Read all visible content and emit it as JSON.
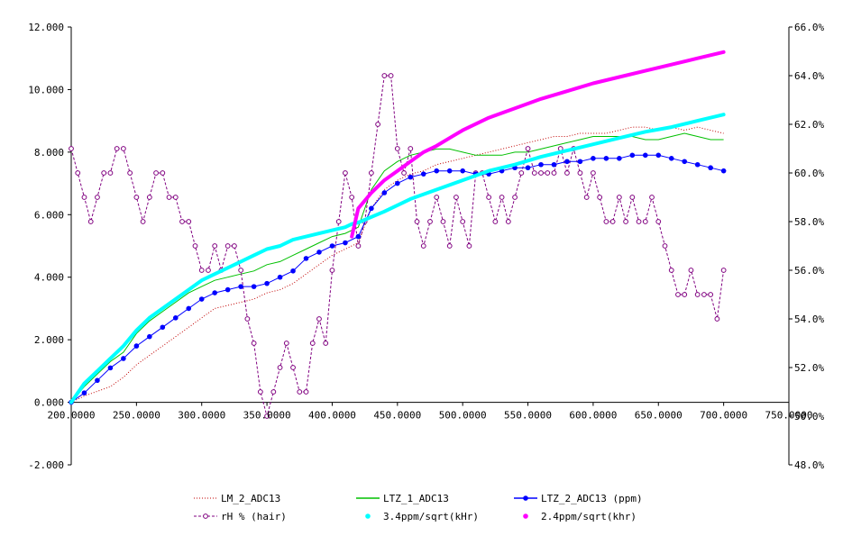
{
  "chart_data": {
    "type": "line",
    "title": "",
    "xlabel": "",
    "ylabel": "",
    "xlim": [
      200,
      750
    ],
    "ylim": [
      -2,
      12
    ],
    "y2lim": [
      48,
      66
    ],
    "x_ticks": [
      "200.0000",
      "250.0000",
      "300.0000",
      "350.0000",
      "400.0000",
      "450.0000",
      "500.0000",
      "550.0000",
      "600.0000",
      "650.0000",
      "700.0000",
      "750.0000"
    ],
    "y_ticks": [
      "-2.000",
      "0.000",
      "2.000",
      "4.000",
      "6.000",
      "8.000",
      "10.000",
      "12.000"
    ],
    "y2_ticks": [
      "48.0%",
      "50.0%",
      "52.0%",
      "54.0%",
      "56.0%",
      "58.0%",
      "60.0%",
      "62.0%",
      "64.0%",
      "66.0%"
    ],
    "grid": false,
    "legend_position": "bottom",
    "series": [
      {
        "name": "LM_2_ADC13",
        "color": "#c00000",
        "style": "dotted",
        "axis": "left",
        "x": [
          200,
          210,
          220,
          230,
          240,
          250,
          260,
          270,
          280,
          290,
          300,
          310,
          320,
          330,
          340,
          350,
          360,
          370,
          380,
          390,
          400,
          410,
          420,
          430,
          440,
          450,
          460,
          470,
          480,
          490,
          500,
          510,
          520,
          530,
          540,
          550,
          560,
          570,
          580,
          590,
          600,
          610,
          620,
          630,
          640,
          650,
          660,
          670,
          680,
          690,
          700
        ],
        "y": [
          0.0,
          0.2,
          0.35,
          0.5,
          0.8,
          1.2,
          1.5,
          1.8,
          2.1,
          2.4,
          2.7,
          3.0,
          3.1,
          3.2,
          3.3,
          3.5,
          3.6,
          3.8,
          4.1,
          4.4,
          4.7,
          4.9,
          5.1,
          6.2,
          6.8,
          7.1,
          7.3,
          7.4,
          7.6,
          7.7,
          7.8,
          7.9,
          8.0,
          8.1,
          8.2,
          8.3,
          8.4,
          8.5,
          8.5,
          8.6,
          8.6,
          8.6,
          8.7,
          8.8,
          8.8,
          8.7,
          8.8,
          8.7,
          8.8,
          8.7,
          8.6
        ]
      },
      {
        "name": "LTZ_1_ADC13",
        "color": "#00c000",
        "style": "solid",
        "axis": "left",
        "x": [
          200,
          210,
          220,
          230,
          240,
          250,
          260,
          270,
          280,
          290,
          300,
          310,
          320,
          330,
          340,
          350,
          360,
          370,
          380,
          390,
          400,
          410,
          420,
          430,
          440,
          450,
          460,
          470,
          480,
          490,
          500,
          510,
          520,
          530,
          540,
          550,
          560,
          570,
          580,
          590,
          600,
          610,
          620,
          630,
          640,
          650,
          660,
          670,
          680,
          690,
          700
        ],
        "y": [
          0.0,
          0.5,
          0.9,
          1.3,
          1.6,
          2.2,
          2.6,
          2.9,
          3.2,
          3.5,
          3.7,
          3.9,
          4.0,
          4.1,
          4.2,
          4.4,
          4.5,
          4.7,
          4.9,
          5.1,
          5.3,
          5.4,
          5.6,
          6.8,
          7.4,
          7.7,
          7.9,
          8.0,
          8.1,
          8.1,
          8.0,
          7.9,
          7.9,
          7.9,
          8.0,
          8.0,
          8.1,
          8.2,
          8.3,
          8.4,
          8.5,
          8.5,
          8.5,
          8.5,
          8.4,
          8.4,
          8.5,
          8.6,
          8.5,
          8.4,
          8.4
        ]
      },
      {
        "name": "LTZ_2_ADC13 (ppm)",
        "color": "#0000ff",
        "style": "solid-dot",
        "axis": "left",
        "x": [
          200,
          210,
          220,
          230,
          240,
          250,
          260,
          270,
          280,
          290,
          300,
          310,
          320,
          330,
          340,
          350,
          360,
          370,
          380,
          390,
          400,
          410,
          420,
          430,
          440,
          450,
          460,
          470,
          480,
          490,
          500,
          510,
          520,
          530,
          540,
          550,
          560,
          570,
          580,
          590,
          600,
          610,
          620,
          630,
          640,
          650,
          660,
          670,
          680,
          690,
          700
        ],
        "y": [
          0.0,
          0.3,
          0.7,
          1.1,
          1.4,
          1.8,
          2.1,
          2.4,
          2.7,
          3.0,
          3.3,
          3.5,
          3.6,
          3.7,
          3.7,
          3.8,
          4.0,
          4.2,
          4.6,
          4.8,
          5.0,
          5.1,
          5.3,
          6.2,
          6.7,
          7.0,
          7.2,
          7.3,
          7.4,
          7.4,
          7.4,
          7.3,
          7.3,
          7.4,
          7.5,
          7.5,
          7.6,
          7.6,
          7.7,
          7.7,
          7.8,
          7.8,
          7.8,
          7.9,
          7.9,
          7.9,
          7.8,
          7.7,
          7.6,
          7.5,
          7.4
        ]
      },
      {
        "name": "rH % (hair)",
        "color": "#800080",
        "style": "dashed-circle",
        "axis": "right",
        "x": [
          200,
          205,
          210,
          215,
          220,
          225,
          230,
          235,
          240,
          245,
          250,
          255,
          260,
          265,
          270,
          275,
          280,
          285,
          290,
          295,
          300,
          305,
          310,
          315,
          320,
          325,
          330,
          335,
          340,
          345,
          350,
          355,
          360,
          365,
          370,
          375,
          380,
          385,
          390,
          395,
          400,
          405,
          410,
          415,
          420,
          425,
          430,
          435,
          440,
          445,
          450,
          455,
          460,
          465,
          470,
          475,
          480,
          485,
          490,
          495,
          500,
          505,
          510,
          515,
          520,
          525,
          530,
          535,
          540,
          545,
          550,
          555,
          560,
          565,
          570,
          575,
          580,
          585,
          590,
          595,
          600,
          605,
          610,
          615,
          620,
          625,
          630,
          635,
          640,
          645,
          650,
          655,
          660,
          665,
          670,
          675,
          680,
          685,
          690,
          695,
          700
        ],
        "y": [
          61,
          60,
          59,
          58,
          59,
          60,
          60,
          61,
          61,
          60,
          59,
          58,
          59,
          60,
          60,
          59,
          59,
          58,
          58,
          57,
          56,
          56,
          57,
          56,
          57,
          57,
          56,
          54,
          53,
          51,
          50,
          51,
          52,
          53,
          52,
          51,
          51,
          53,
          54,
          53,
          56,
          58,
          60,
          59,
          57,
          58,
          60,
          62,
          64,
          64,
          61,
          60,
          61,
          58,
          57,
          58,
          59,
          58,
          57,
          59,
          58,
          57,
          60,
          60,
          59,
          58,
          59,
          58,
          59,
          60,
          61,
          60,
          60,
          60,
          60,
          61,
          60,
          61,
          60,
          59,
          60,
          59,
          58,
          58,
          59,
          58,
          59,
          58,
          58,
          59,
          58,
          57,
          56,
          55,
          55,
          56,
          55,
          55,
          55,
          54,
          56
        ]
      },
      {
        "name": "3.4ppm/sqrt(kHr)",
        "color": "#00ffff",
        "style": "thick",
        "axis": "left",
        "x": [
          200,
          210,
          220,
          230,
          240,
          250,
          260,
          270,
          280,
          290,
          300,
          310,
          320,
          330,
          340,
          350,
          360,
          370,
          380,
          390,
          400,
          410,
          415,
          420,
          440,
          460,
          480,
          500,
          520,
          540,
          560,
          580,
          600,
          620,
          640,
          660,
          680,
          700
        ],
        "y": [
          0.0,
          0.6,
          1.0,
          1.4,
          1.8,
          2.3,
          2.7,
          3.0,
          3.3,
          3.6,
          3.9,
          4.1,
          4.3,
          4.5,
          4.7,
          4.9,
          5.0,
          5.2,
          5.3,
          5.4,
          5.5,
          5.6,
          5.7,
          5.75,
          6.1,
          6.5,
          6.8,
          7.1,
          7.4,
          7.6,
          7.85,
          8.05,
          8.25,
          8.45,
          8.65,
          8.8,
          9.0,
          9.2
        ]
      },
      {
        "name": "2.4ppm/sqrt(khr)",
        "color": "#ff00ff",
        "style": "thick",
        "axis": "left",
        "x": [
          415,
          420,
          430,
          440,
          450,
          460,
          470,
          480,
          490,
          500,
          520,
          540,
          560,
          580,
          600,
          620,
          640,
          660,
          680,
          700
        ],
        "y": [
          5.3,
          6.2,
          6.7,
          7.1,
          7.4,
          7.7,
          8.0,
          8.2,
          8.45,
          8.7,
          9.1,
          9.4,
          9.7,
          9.95,
          10.2,
          10.4,
          10.6,
          10.8,
          11.0,
          11.2
        ]
      }
    ]
  }
}
